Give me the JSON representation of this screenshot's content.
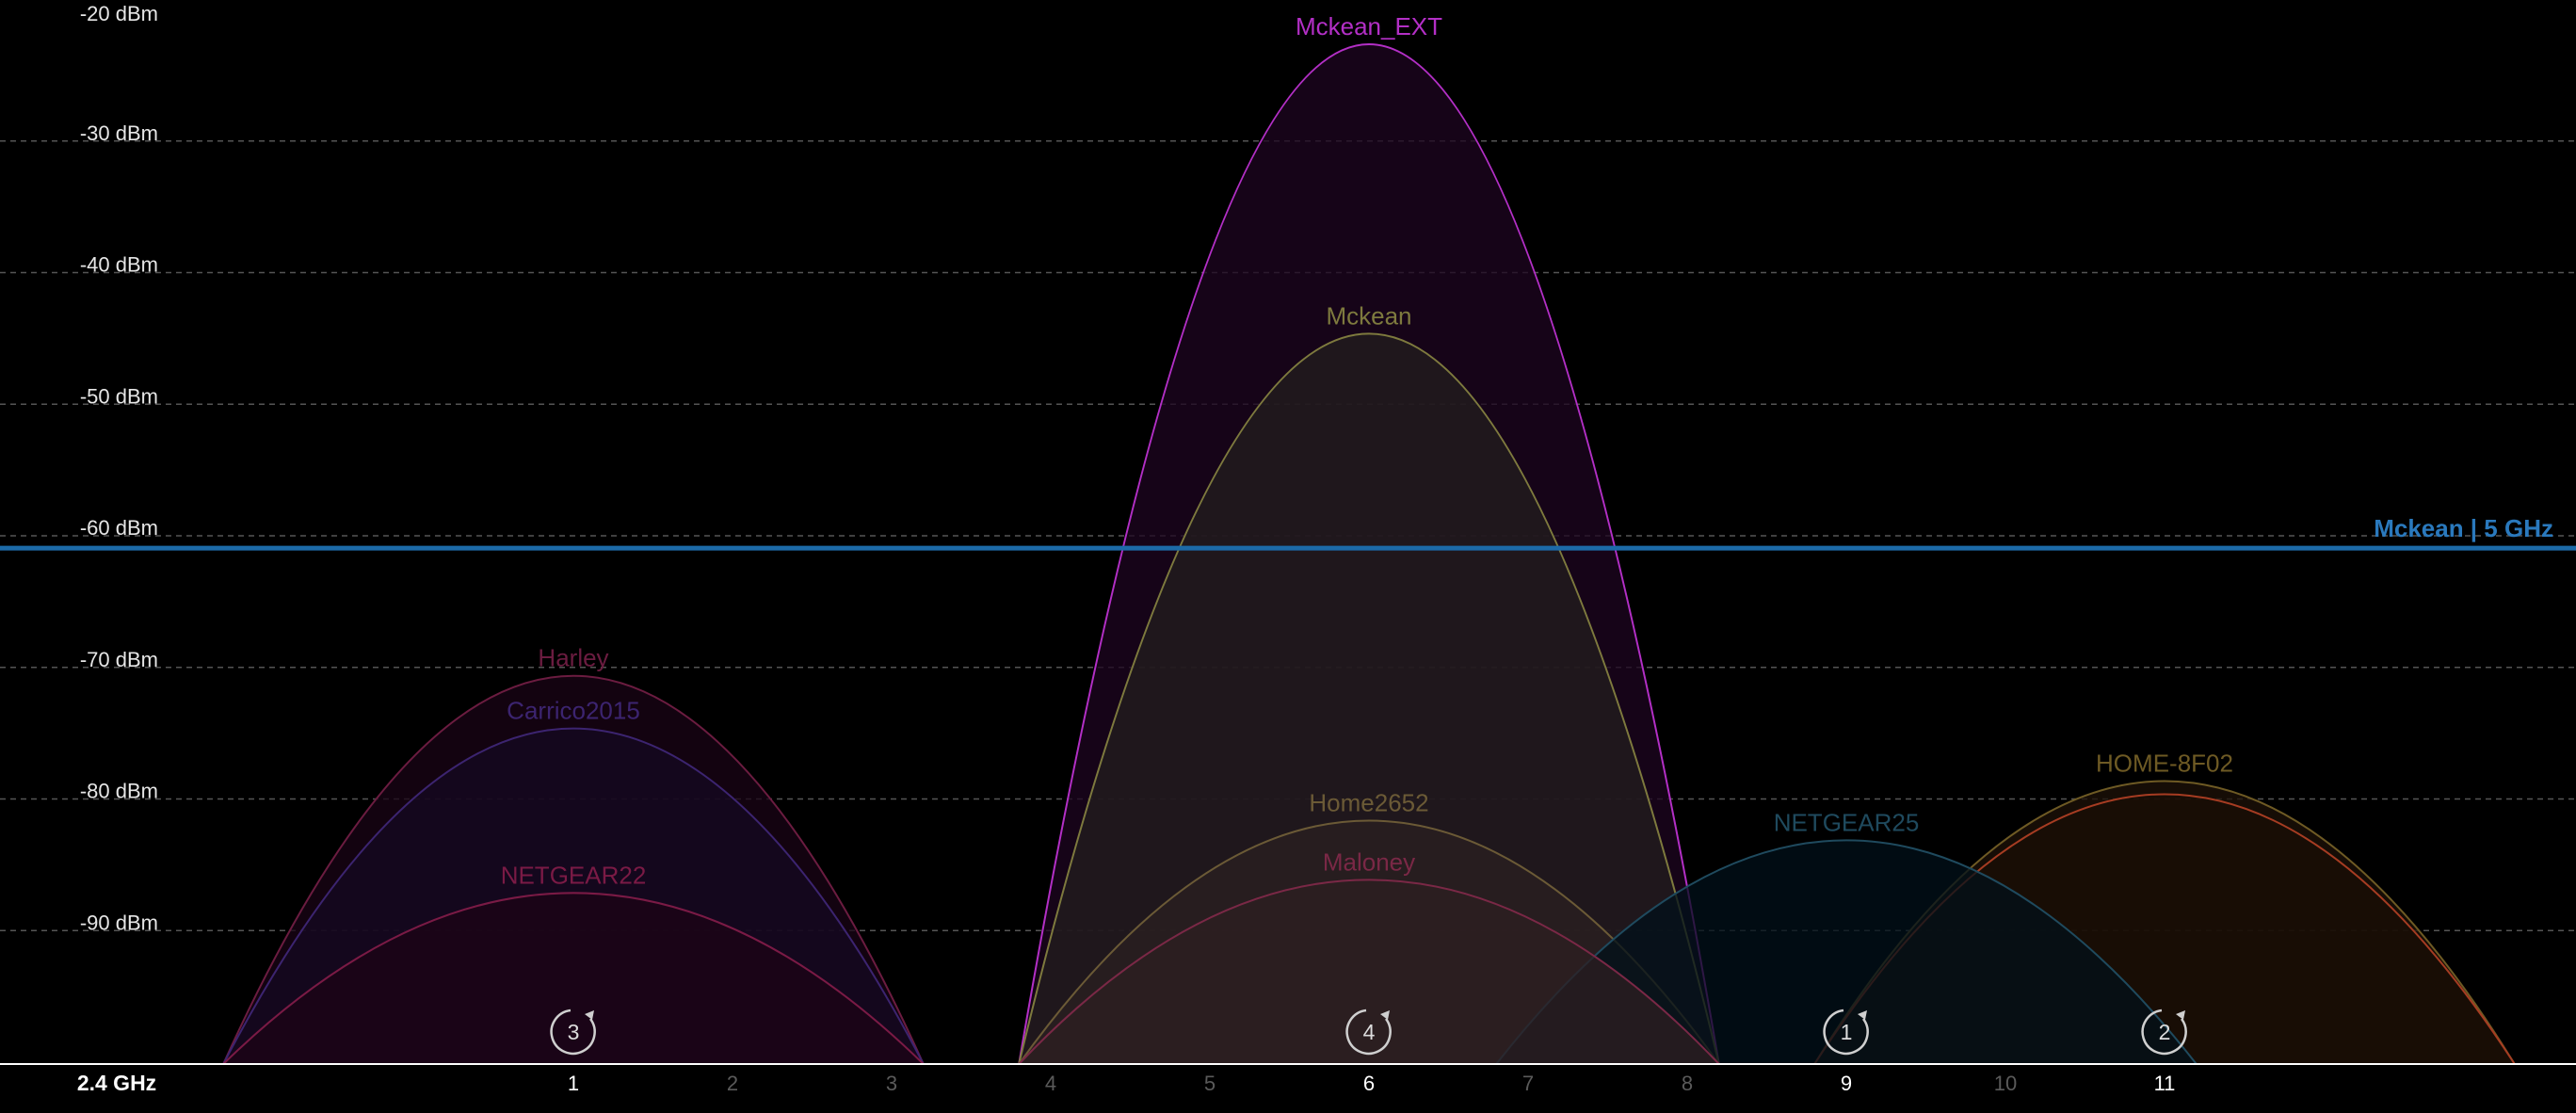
{
  "chart_data": {
    "type": "area",
    "band_label": "2.4 GHz",
    "y_unit": "dBm",
    "ylim": [
      -100,
      -20
    ],
    "y_ticks": [
      -20,
      -30,
      -40,
      -50,
      -60,
      -70,
      -80,
      -90
    ],
    "y_tick_labels": [
      "-20 dBm",
      "-30 dBm",
      "-40 dBm",
      "-50 dBm",
      "-60 dBm",
      "-70 dBm",
      "-80 dBm",
      "-90 dBm"
    ],
    "x_ticks": [
      1,
      2,
      3,
      4,
      5,
      6,
      7,
      8,
      9,
      10,
      11
    ],
    "x_tick_labels": [
      "1",
      "2",
      "3",
      "4",
      "5",
      "6",
      "7",
      "8",
      "9",
      "10",
      "11"
    ],
    "active_channels": [
      1,
      6,
      9,
      11
    ],
    "grid": true,
    "reference_line": {
      "label": "Mckean | 5 GHz",
      "value": -60.8,
      "color": "#1c6aa8"
    },
    "series": [
      {
        "name": "Mckean_EXT",
        "channel": 6,
        "signal": -22.5,
        "color": "#b32fc6",
        "fill": "#1d0620"
      },
      {
        "name": "Mckean",
        "channel": 6,
        "signal": -44.5,
        "color": "#7e7a3e",
        "fill": "#231d1e"
      },
      {
        "name": "Home2652",
        "channel": 6,
        "signal": -81.5,
        "color": "#6b5a36",
        "fill": "#2b2020"
      },
      {
        "name": "Maloney",
        "channel": 6,
        "signal": -86.0,
        "color": "#7a2846",
        "fill": "#2e1f22"
      },
      {
        "name": "Harley",
        "channel": 1,
        "signal": -70.5,
        "color": "#6b1c40",
        "fill": "#1a0416"
      },
      {
        "name": "Carrico2015",
        "channel": 1,
        "signal": -74.5,
        "color": "#3c2470",
        "fill": "#150a22"
      },
      {
        "name": "NETGEAR22",
        "channel": 1,
        "signal": -87.0,
        "color": "#7a1a45",
        "fill": "#1c0416"
      },
      {
        "name": "NETGEAR25",
        "channel": 9,
        "signal": -83.0,
        "color": "#1f4a5e",
        "fill": "#02101a"
      },
      {
        "name": "HOME-8F02",
        "channel": 11,
        "signal": -78.5,
        "color": "#6e5a24",
        "fill": "#1e1208"
      },
      {
        "name": "",
        "channel": 11,
        "signal": -79.5,
        "color": "#a63c22",
        "fill": "#1a0d05"
      }
    ],
    "channel_badges": [
      {
        "channel": 1,
        "count": "3"
      },
      {
        "channel": 6,
        "count": "4"
      },
      {
        "channel": 9,
        "count": "1"
      },
      {
        "channel": 11,
        "count": "2"
      }
    ]
  }
}
